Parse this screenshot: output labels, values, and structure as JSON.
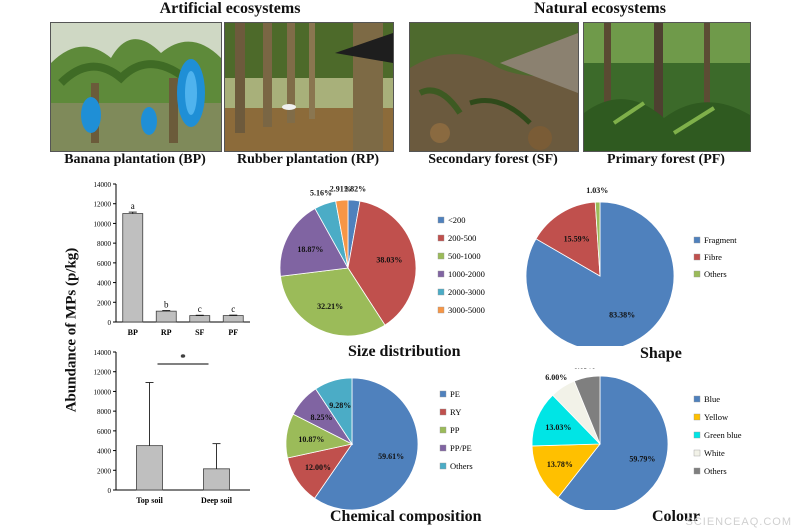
{
  "headers": {
    "artificial": "Artificial ecosystems",
    "natural": "Natural ecosystems"
  },
  "photos": [
    {
      "caption": "Banana plantation (BP)",
      "scene": "banana-plantation"
    },
    {
      "caption": "Rubber plantation (RP)",
      "scene": "rubber-plantation"
    },
    {
      "caption": "Secondary forest (SF)",
      "scene": "secondary-forest"
    },
    {
      "caption": "Primary forest (PF)",
      "scene": "primary-forest"
    }
  ],
  "shared_ylabel": "Abundance of MPs (p/kg)",
  "panel_titles": {
    "size": "Size distribution",
    "shape": "Shape",
    "chemical": "Chemical composition",
    "colour": "Colour"
  },
  "watermark": "SCIENCEAQ.COM",
  "colors": {
    "blue": "#4F81BD",
    "red": "#C0504D",
    "green": "#9BBB59",
    "purple": "#8064A2",
    "teal": "#4BACC6",
    "orange": "#F79646",
    "yellow": "#FFC000",
    "cyan": "#00E5E5",
    "white": "#F2F2E8",
    "gray": "#7F7F7F",
    "bar": "#BFBFBF"
  },
  "chart_data": [
    {
      "id": "ecosystem-bar",
      "type": "bar",
      "categories": [
        "BP",
        "RP",
        "SF",
        "PF"
      ],
      "values": [
        11000,
        1100,
        650,
        650
      ],
      "errors": [
        150,
        60,
        40,
        50
      ],
      "letters": [
        "a",
        "b",
        "c",
        "c"
      ],
      "ylim": [
        0,
        14000
      ],
      "yticks": [
        0,
        2000,
        4000,
        6000,
        8000,
        10000,
        12000,
        14000
      ]
    },
    {
      "id": "soil-bar",
      "type": "bar",
      "categories": [
        "Top soil",
        "Deep soil"
      ],
      "values": [
        4500,
        2150
      ],
      "errors": [
        6400,
        2550
      ],
      "significance": "*",
      "ylim": [
        0,
        14000
      ],
      "yticks": [
        0,
        2000,
        4000,
        6000,
        8000,
        10000,
        12000,
        14000
      ]
    },
    {
      "id": "size-pie",
      "type": "pie",
      "title": "Size distribution",
      "legend": [
        "<200",
        "200-500",
        "500-1000",
        "1000-2000",
        "2000-3000",
        "3000-5000"
      ],
      "values": [
        2.82,
        38.03,
        32.21,
        18.87,
        5.16,
        2.91
      ],
      "labels": [
        "2.82%",
        "38.03%",
        "32.21%",
        "18.87%",
        "5.16%",
        "2.91%"
      ],
      "colors": [
        "#4F81BD",
        "#C0504D",
        "#9BBB59",
        "#8064A2",
        "#4BACC6",
        "#F79646"
      ]
    },
    {
      "id": "shape-pie",
      "type": "pie",
      "title": "Shape",
      "legend": [
        "Fragment",
        "Fibre",
        "Others"
      ],
      "values": [
        83.38,
        15.59,
        1.03
      ],
      "labels": [
        "83.38%",
        "15.59%",
        "1.03%"
      ],
      "colors": [
        "#4F81BD",
        "#C0504D",
        "#9BBB59"
      ]
    },
    {
      "id": "chem-pie",
      "type": "pie",
      "title": "Chemical composition",
      "legend": [
        "PE",
        "RY",
        "PP",
        "PP/PE",
        "Others"
      ],
      "values": [
        59.61,
        12.0,
        10.87,
        8.25,
        9.28
      ],
      "labels": [
        "59.61%",
        "12.00%",
        "10.87%",
        "8.25%",
        "9.28%"
      ],
      "colors": [
        "#4F81BD",
        "#C0504D",
        "#9BBB59",
        "#8064A2",
        "#4BACC6"
      ]
    },
    {
      "id": "colour-pie",
      "type": "pie",
      "title": "Colour",
      "legend": [
        "Blue",
        "Yellow",
        "Green blue",
        "White",
        "Others"
      ],
      "values": [
        59.79,
        13.78,
        13.03,
        6.0,
        6.09
      ],
      "labels": [
        "59.79%",
        "13.78%",
        "13.03%",
        "6.00%",
        "6.09%"
      ],
      "colors": [
        "#4F81BD",
        "#FFC000",
        "#00E5E5",
        "#F2F2E8",
        "#7F7F7F"
      ]
    }
  ]
}
